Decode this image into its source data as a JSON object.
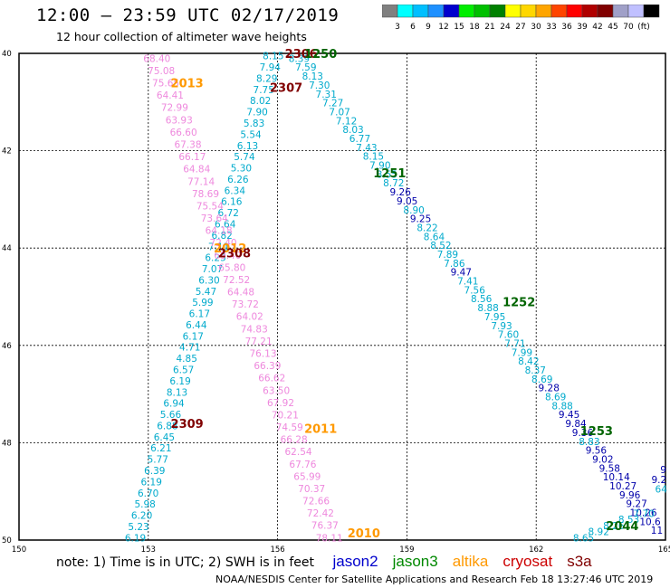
{
  "header": {
    "title": "12:00 – 23:59 UTC 02/17/2019",
    "subtitle": "12 hour collection of altimeter wave heights"
  },
  "colorbar": {
    "colors": [
      "#808080",
      "#00ffff",
      "#00bfff",
      "#1e90ff",
      "#0000cd",
      "#00ee00",
      "#00c000",
      "#008000",
      "#ffff00",
      "#ffd700",
      "#ffa500",
      "#ff4500",
      "#ff0000",
      "#b00000",
      "#800000",
      "#a0a0c8",
      "#c0c0ff",
      "#000000"
    ],
    "labels": [
      "3",
      "6",
      "9",
      "12",
      "15",
      "18",
      "21",
      "24",
      "27",
      "30",
      "33",
      "36",
      "39",
      "42",
      "45",
      "70",
      "(ft)"
    ]
  },
  "axes": {
    "x_ticks": [
      "150",
      "153",
      "156",
      "159",
      "162",
      "165"
    ],
    "y_ticks": [
      "40",
      "42",
      "44",
      "46",
      "48",
      "50"
    ]
  },
  "satellite_colors": {
    "jason2": "#0000cc",
    "jason3": "#006400",
    "altika": "#ff9900",
    "cryosat": "#cc0000",
    "s3a": "#800000",
    "swh_cyan": "#00aacc",
    "swh_pink": "#ee88dd",
    "swh_blue": "#0000aa"
  },
  "chart_data": {
    "type": "scatter",
    "tracks": [
      {
        "id": "cyan-2307",
        "color": "swh_cyan",
        "lon_start": 155.9,
        "lat_start": 40.05,
        "lon_end": 152.7,
        "lat_end": 49.95,
        "values": [
          "8.15",
          "7.94",
          "8.29",
          "7.75",
          "8.02",
          "7.90",
          "5.83",
          "5.54",
          "6.13",
          "5.74",
          "5.30",
          "6.26",
          "6.34",
          "6.16",
          "6.72",
          "6.64",
          "6.82",
          "7.11",
          "6.25",
          "7.07",
          "6.30",
          "5.47",
          "5.99",
          "6.17",
          "6.44",
          "6.17",
          "4.71",
          "4.85",
          "6.57",
          "6.19",
          "8.13",
          "6.94",
          "5.66",
          "6.88",
          "6.45",
          "6.21",
          "5.77",
          "6.39",
          "6.19",
          "6.70",
          "5.98",
          "6.20",
          "5.23",
          "6.19"
        ]
      },
      {
        "id": "pink-2013",
        "color": "swh_pink",
        "lon_start": 153.2,
        "lat_start": 40.1,
        "lon_end": 157.2,
        "lat_end": 49.95,
        "values": [
          "68.40",
          "75.08",
          "75.65",
          "64.41",
          "72.99",
          "63.93",
          "66.60",
          "67.38",
          "66.17",
          "64.84",
          "77.14",
          "78.69",
          "75.54",
          "73.64",
          "64.18",
          "72.40",
          "69.40",
          "65.80",
          "72.52",
          "64.48",
          "73.72",
          "64.02",
          "74.83",
          "77.21",
          "76.13",
          "66.39",
          "66.62",
          "63.50",
          "67.92",
          "70.21",
          "74.59",
          "66.28",
          "62.54",
          "67.76",
          "65.99",
          "70.37",
          "72.66",
          "72.42",
          "76.37",
          "78.11"
        ]
      },
      {
        "id": "descending-1250",
        "color": "swh_cyan",
        "lon_start": 156.5,
        "lat_start": 40.1,
        "lon_end": 164.8,
        "lat_end": 49.8,
        "values": [
          "8.39",
          "7.59",
          "8.13",
          "7.30",
          "7.31",
          "7.27",
          "7.07",
          "7.12",
          "8.03",
          "6.77",
          "7.43",
          "8.15",
          "7.90",
          "8.55",
          "8.72",
          "9.26",
          "9.05",
          "8.90",
          "9.25",
          "8.22",
          "8.64",
          "8.52",
          "7.89",
          "7.86",
          "9.47",
          "7.41",
          "7.56",
          "8.56",
          "8.88",
          "7.95",
          "7.93",
          "7.60",
          "7.71",
          "7.99",
          "8.42",
          "8.37",
          "8.69",
          "9.28",
          "8.69",
          "8.88",
          "9.45",
          "9.84",
          "9.36",
          "8.83",
          "9.56",
          "9.02",
          "9.58",
          "10.14",
          "10.27",
          "9.96",
          "9.27",
          "10.26",
          "10.6",
          "11"
        ],
        "blue_indices": [
          15,
          16,
          18,
          24,
          37,
          40,
          41,
          42,
          44,
          45,
          46,
          47,
          48,
          49,
          50,
          51,
          52,
          53
        ]
      },
      {
        "id": "lower-right",
        "color": "swh_cyan",
        "lon_start": 164.5,
        "lat_start": 49.45,
        "lon_end": 163.1,
        "lat_end": 49.95,
        "values": [
          "7.70",
          "8.53",
          "8.26",
          "8.92",
          "8.65"
        ]
      }
    ],
    "edge_values": [
      {
        "text": "9",
        "lon": 164.95,
        "lat": 48.55,
        "color": "swh_blue"
      },
      {
        "text": "9.2",
        "lon": 164.85,
        "lat": 48.75,
        "color": "swh_blue"
      },
      {
        "text": "64",
        "lon": 164.9,
        "lat": 48.95,
        "color": "swh_cyan"
      }
    ],
    "time_labels": [
      {
        "text": "2306",
        "lon": 156.55,
        "lat": 40.0,
        "color": "s3a"
      },
      {
        "text": "1250",
        "lon": 157.0,
        "lat": 40.0,
        "color": "jason3"
      },
      {
        "text": "2307",
        "lon": 156.2,
        "lat": 40.7,
        "color": "s3a"
      },
      {
        "text": "2013",
        "lon": 153.9,
        "lat": 40.6,
        "color": "altika"
      },
      {
        "text": "1251",
        "lon": 158.6,
        "lat": 42.45,
        "color": "jason3"
      },
      {
        "text": "2012",
        "lon": 154.9,
        "lat": 44.0,
        "color": "altika"
      },
      {
        "text": "2308",
        "lon": 155.0,
        "lat": 44.1,
        "color": "s3a"
      },
      {
        "text": "1252",
        "lon": 161.6,
        "lat": 45.1,
        "color": "jason3"
      },
      {
        "text": "1253",
        "lon": 163.4,
        "lat": 47.75,
        "color": "jason3"
      },
      {
        "text": "2309",
        "lon": 153.9,
        "lat": 47.6,
        "color": "s3a"
      },
      {
        "text": "2011",
        "lon": 157.0,
        "lat": 47.7,
        "color": "altika"
      },
      {
        "text": "2044",
        "lon": 164.0,
        "lat": 49.7,
        "color": "jason3"
      },
      {
        "text": "2010",
        "lon": 158.0,
        "lat": 49.85,
        "color": "altika"
      }
    ]
  },
  "note": {
    "text": "note:  1) Time is in UTC; 2) SWH is in feet",
    "legend": [
      {
        "name": "jason2",
        "color": "#0000cc"
      },
      {
        "name": "jason3",
        "color": "#008800"
      },
      {
        "name": "altika",
        "color": "#ff9900"
      },
      {
        "name": "cryosat",
        "color": "#cc0000"
      },
      {
        "name": "s3a",
        "color": "#800000"
      }
    ]
  },
  "footer": {
    "text": "NOAA/NESDIS Center for Satellite Applications and Research     Feb 18 13:27:46 UTC 2019"
  }
}
